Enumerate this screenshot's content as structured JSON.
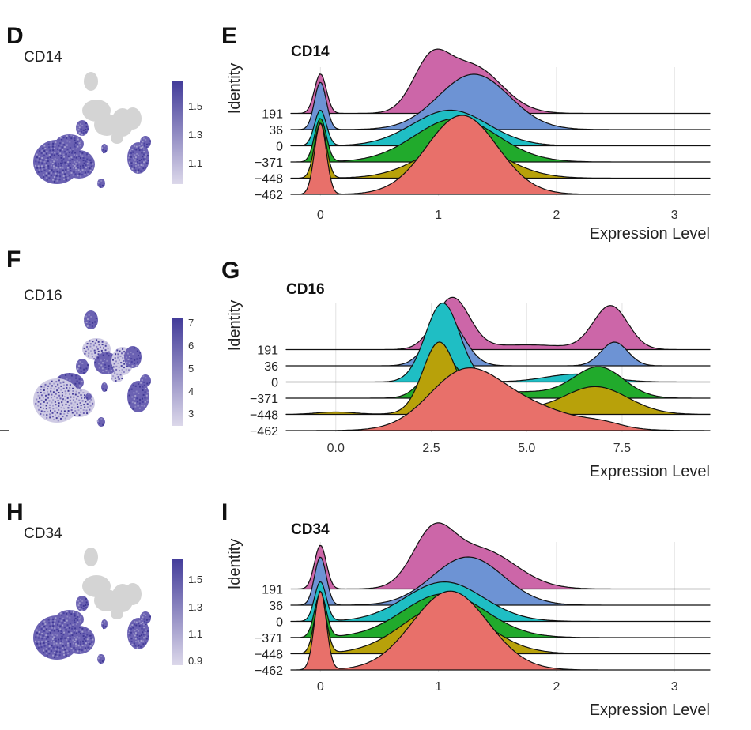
{
  "colors": {
    "ridge": [
      "#e8706a",
      "#b8a10a",
      "#21aa2c",
      "#1fbec4",
      "#6d93d4",
      "#cc66a8"
    ],
    "umap_gray": "#d4d4d4",
    "feature_low": "#dcd8ea",
    "feature_high": "#433c9a"
  },
  "panels": [
    {
      "feature_label": "D",
      "ridge_label": "E",
      "gene": "CD14",
      "colorbar_ticks": [
        "1.5",
        "1.3",
        "1.1"
      ],
      "chart_data": {
        "type": "ridgeline",
        "title": "CD14",
        "xlabel": "Expression Level",
        "ylabel": "Identity",
        "xlim": [
          -0.25,
          3.3
        ],
        "xticks": [
          {
            "v": 0,
            "label": "0"
          },
          {
            "v": 1,
            "label": "1"
          },
          {
            "v": 2,
            "label": "2"
          },
          {
            "v": 3,
            "label": "3"
          }
        ],
        "categories": [
          "−462",
          "−448",
          "−371",
          "0",
          "36",
          "191"
        ],
        "series": [
          {
            "name": "−462",
            "components": [
              [
                0,
                0.05,
                0.9
              ],
              [
                1.2,
                0.3,
                1.0
              ]
            ]
          },
          {
            "name": "−448",
            "components": [
              [
                0,
                0.05,
                0.7
              ],
              [
                1.2,
                0.34,
                0.45
              ]
            ]
          },
          {
            "name": "−371",
            "components": [
              [
                0,
                0.05,
                0.55
              ],
              [
                1.15,
                0.35,
                0.55
              ]
            ]
          },
          {
            "name": "0",
            "components": [
              [
                0,
                0.05,
                0.45
              ],
              [
                1.1,
                0.32,
                0.45
              ]
            ]
          },
          {
            "name": "36",
            "components": [
              [
                0,
                0.05,
                0.6
              ],
              [
                1.3,
                0.3,
                0.7
              ]
            ]
          },
          {
            "name": "191",
            "components": [
              [
                0,
                0.05,
                0.5
              ],
              [
                0.93,
                0.15,
                0.55
              ],
              [
                1.28,
                0.25,
                0.6
              ]
            ]
          }
        ]
      }
    },
    {
      "feature_label": "F",
      "ridge_label": "G",
      "gene": "CD16",
      "colorbar_ticks": [
        "7",
        "6",
        "5",
        "4",
        "3"
      ],
      "chart_data": {
        "type": "ridgeline",
        "title": "CD16",
        "xlabel": "Expression Level",
        "ylabel": "Identity",
        "xlim": [
          -1.3,
          9.8
        ],
        "xticks": [
          {
            "v": 0,
            "label": "0.0"
          },
          {
            "v": 2.5,
            "label": "2.5"
          },
          {
            "v": 5,
            "label": "5.0"
          },
          {
            "v": 7.5,
            "label": "7.5"
          }
        ],
        "categories": [
          "−462",
          "−448",
          "−371",
          "0",
          "36",
          "191"
        ],
        "series": [
          {
            "name": "−462",
            "components": [
              [
                3.3,
                0.9,
                0.55
              ],
              [
                4.6,
                1.4,
                0.35
              ],
              [
                7.0,
                0.5,
                0.05
              ]
            ]
          },
          {
            "name": "−448",
            "components": [
              [
                0,
                0.5,
                0.03
              ],
              [
                2.7,
                0.42,
                0.85
              ],
              [
                3.8,
                1.0,
                0.12
              ],
              [
                6.8,
                0.85,
                0.35
              ]
            ]
          },
          {
            "name": "−371",
            "components": [
              [
                2.8,
                0.45,
                0.5
              ],
              [
                4.8,
                1.2,
                0.08
              ],
              [
                6.9,
                0.65,
                0.38
              ]
            ]
          },
          {
            "name": "0",
            "components": [
              [
                2.8,
                0.45,
                1.0
              ],
              [
                6.3,
                0.8,
                0.1
              ]
            ]
          },
          {
            "name": "36",
            "components": [
              [
                2.9,
                0.45,
                0.6
              ],
              [
                7.3,
                0.35,
                0.3
              ]
            ]
          },
          {
            "name": "191",
            "components": [
              [
                3.05,
                0.45,
                0.65
              ],
              [
                5.0,
                1.1,
                0.06
              ],
              [
                7.2,
                0.45,
                0.55
              ]
            ]
          }
        ]
      }
    },
    {
      "feature_label": "H",
      "ridge_label": "I",
      "gene": "CD34",
      "colorbar_ticks": [
        "1.5",
        "1.3",
        "1.1",
        "0.9"
      ],
      "chart_data": {
        "type": "ridgeline",
        "title": "CD34",
        "xlabel": "Expression Level",
        "ylabel": "Identity",
        "xlim": [
          -0.25,
          3.3
        ],
        "xticks": [
          {
            "v": 0,
            "label": "0"
          },
          {
            "v": 1,
            "label": "1"
          },
          {
            "v": 2,
            "label": "2"
          },
          {
            "v": 3,
            "label": "3"
          }
        ],
        "categories": [
          "−462",
          "−448",
          "−371",
          "0",
          "36",
          "191"
        ],
        "series": [
          {
            "name": "−462",
            "components": [
              [
                0,
                0.05,
                0.9
              ],
              [
                1.1,
                0.32,
                0.9
              ]
            ]
          },
          {
            "name": "−448",
            "components": [
              [
                0,
                0.05,
                0.65
              ],
              [
                1.05,
                0.35,
                0.55
              ]
            ]
          },
          {
            "name": "−371",
            "components": [
              [
                0,
                0.05,
                0.5
              ],
              [
                1.05,
                0.35,
                0.5
              ]
            ]
          },
          {
            "name": "0",
            "components": [
              [
                0,
                0.05,
                0.45
              ],
              [
                1.05,
                0.33,
                0.45
              ]
            ]
          },
          {
            "name": "36",
            "components": [
              [
                0,
                0.05,
                0.55
              ],
              [
                1.25,
                0.3,
                0.55
              ]
            ]
          },
          {
            "name": "191",
            "components": [
              [
                0,
                0.05,
                0.5
              ],
              [
                0.95,
                0.17,
                0.55
              ],
              [
                1.35,
                0.3,
                0.45
              ]
            ]
          }
        ]
      }
    }
  ]
}
